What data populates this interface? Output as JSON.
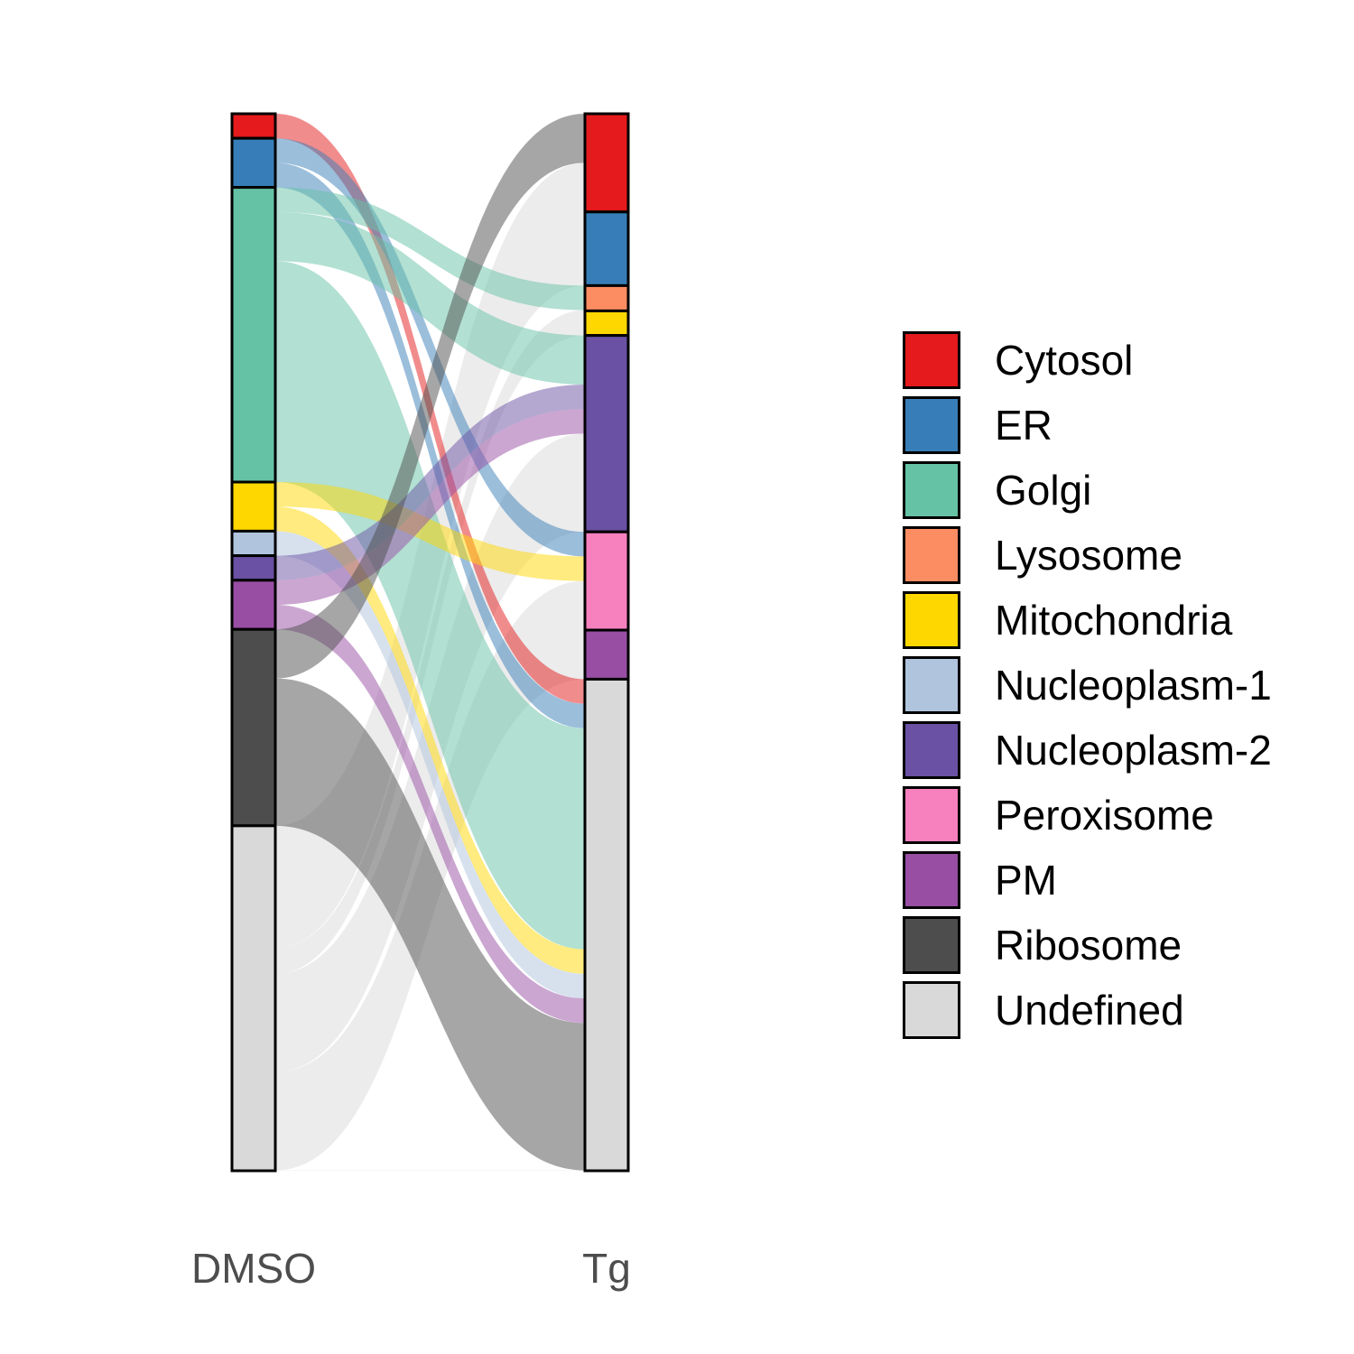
{
  "chart_data": {
    "type": "alluvial",
    "axes": [
      "DMSO",
      "Tg"
    ],
    "categories": [
      "Cytosol",
      "ER",
      "Golgi",
      "Lysosome",
      "Mitochondria",
      "Nucleoplasm-1",
      "Nucleoplasm-2",
      "Peroxisome",
      "PM",
      "Ribosome",
      "Undefined"
    ],
    "colors": {
      "Cytosol": "#E41A1C",
      "ER": "#377EB8",
      "Golgi": "#66C2A5",
      "Lysosome": "#FC8D62",
      "Mitochondria": "#FFD700",
      "Nucleoplasm-1": "#B0C4DE",
      "Nucleoplasm-2": "#6A51A3",
      "Peroxisome": "#F781BF",
      "PM": "#984EA3",
      "Ribosome": "#4D4D4D",
      "Undefined": "#D9D9D9"
    },
    "flows": [
      {
        "from": "Cytosol",
        "to": "Undefined",
        "value": 1
      },
      {
        "from": "ER",
        "to": "Peroxisome",
        "value": 1
      },
      {
        "from": "ER",
        "to": "Undefined",
        "value": 1
      },
      {
        "from": "Golgi",
        "to": "Lysosome",
        "value": 1
      },
      {
        "from": "Golgi",
        "to": "Nucleoplasm-2",
        "value": 2
      },
      {
        "from": "Golgi",
        "to": "Undefined",
        "value": 9
      },
      {
        "from": "Mitochondria",
        "to": "Peroxisome",
        "value": 1
      },
      {
        "from": "Mitochondria",
        "to": "Undefined",
        "value": 1
      },
      {
        "from": "Nucleoplasm-1",
        "to": "Undefined",
        "value": 1
      },
      {
        "from": "Nucleoplasm-2",
        "to": "Nucleoplasm-2",
        "value": 1
      },
      {
        "from": "PM",
        "to": "Nucleoplasm-2",
        "value": 1
      },
      {
        "from": "PM",
        "to": "Undefined",
        "value": 1
      },
      {
        "from": "Ribosome",
        "to": "Cytosol",
        "value": 2
      },
      {
        "from": "Ribosome",
        "to": "Undefined",
        "value": 6
      },
      {
        "from": "Undefined",
        "to": "Cytosol",
        "value": 2
      },
      {
        "from": "Undefined",
        "to": "ER",
        "value": 3
      },
      {
        "from": "Undefined",
        "to": "Lysosome",
        "value": 0.03
      },
      {
        "from": "Undefined",
        "to": "Mitochondria",
        "value": 1
      },
      {
        "from": "Undefined",
        "to": "Nucleoplasm-2",
        "value": 4
      },
      {
        "from": "Undefined",
        "to": "Peroxisome",
        "value": 2
      },
      {
        "from": "Undefined",
        "to": "PM",
        "value": 2
      },
      {
        "from": "Undefined",
        "to": "Undefined",
        "value": 0.02
      }
    ],
    "legend_position": "right",
    "grid": false
  }
}
